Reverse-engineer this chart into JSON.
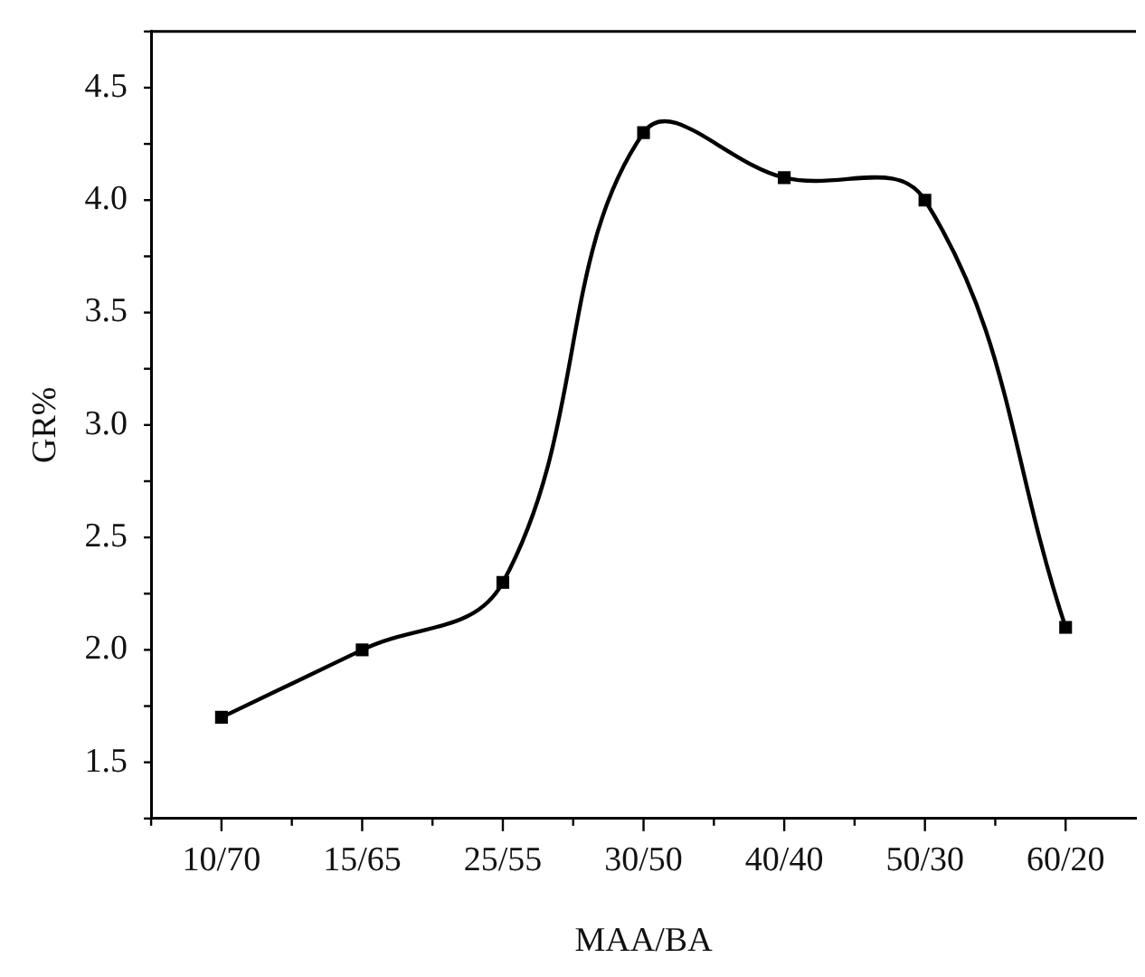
{
  "chart_data": {
    "type": "line",
    "xlabel": "MAA/BA",
    "ylabel": "GR%",
    "categories": [
      "10/70",
      "15/65",
      "25/55",
      "30/50",
      "40/40",
      "50/30",
      "60/20"
    ],
    "series": [
      {
        "type": "line",
        "color": "#000000",
        "values": [
          1.7,
          2.0,
          2.3,
          4.3,
          4.1,
          4.0,
          2.1
        ]
      }
    ],
    "ylim": [
      1.25,
      4.75
    ],
    "yticks": [
      1.5,
      {
        "value": 2,
        "label": "2.0"
      },
      2.5,
      {
        "value": 3,
        "label": "3.0"
      },
      3.5,
      {
        "value": 4,
        "label": "4.0"
      },
      4.5
    ],
    "marker": "square",
    "line_style": "solid",
    "grid": false,
    "legend": false
  }
}
